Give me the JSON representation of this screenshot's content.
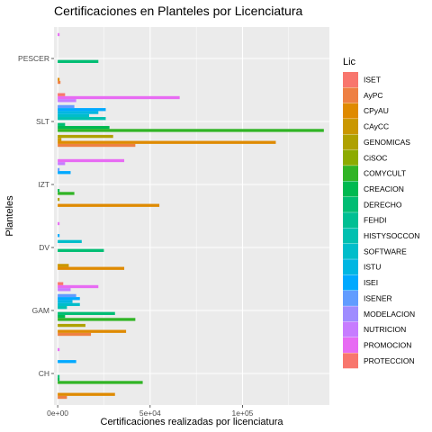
{
  "chart_data": {
    "type": "bar",
    "orientation": "horizontal",
    "title": "Certificaciones en Planteles por Licenciatura",
    "xlabel": "Certificaciones realizadas por licenciatura",
    "ylabel": "Planteles",
    "xlim": [
      -2000,
      147000
    ],
    "x_ticks": [
      {
        "value": 0,
        "label": "0e+00"
      },
      {
        "value": 50000,
        "label": "5e+04"
      },
      {
        "value": 100000,
        "label": "1e+05"
      }
    ],
    "categories": [
      "CH",
      "GAM",
      "DV",
      "IZT",
      "SLT",
      "PESCER"
    ],
    "legend": {
      "title": "Lic",
      "placement": "right"
    },
    "series": [
      {
        "name": "ISET",
        "color": "#F8766D",
        "values": [
          0,
          0,
          0,
          0,
          0,
          0
        ]
      },
      {
        "name": "AyPC",
        "color": "#EE8043",
        "values": [
          5000,
          18000,
          0,
          0,
          42000,
          1500
        ]
      },
      {
        "name": "CPyAU",
        "color": "#DF8A00",
        "values": [
          31000,
          37000,
          36000,
          55000,
          118000,
          1000
        ]
      },
      {
        "name": "CAyCC",
        "color": "#CA9700",
        "values": [
          0,
          0,
          6000,
          0,
          2000,
          0
        ]
      },
      {
        "name": "GENOMICAS",
        "color": "#AFA100",
        "values": [
          0,
          15000,
          0,
          1000,
          30000,
          0
        ]
      },
      {
        "name": "CiSOC",
        "color": "#8CAB00",
        "values": [
          0,
          0,
          0,
          0,
          0,
          0
        ]
      },
      {
        "name": "COMYCULT",
        "color": "#31B425",
        "values": [
          46000,
          42000,
          0,
          9000,
          144000,
          0
        ]
      },
      {
        "name": "CREACION",
        "color": "#00B950",
        "values": [
          1000,
          4000,
          0,
          1000,
          28000,
          0
        ]
      },
      {
        "name": "DERECHO",
        "color": "#00BD73",
        "values": [
          1000,
          31000,
          25000,
          0,
          4000,
          22000
        ]
      },
      {
        "name": "FEHDI",
        "color": "#00BF93",
        "values": [
          0,
          0,
          0,
          0,
          0,
          0
        ]
      },
      {
        "name": "HISTYSOCCON",
        "color": "#00C0B0",
        "values": [
          0,
          5000,
          0,
          0,
          26000,
          0
        ]
      },
      {
        "name": "SOFTWARE",
        "color": "#00BDCA",
        "values": [
          0,
          12000,
          13000,
          0,
          17000,
          0
        ]
      },
      {
        "name": "ISTU",
        "color": "#00B6E2",
        "values": [
          0,
          8000,
          0,
          0,
          22000,
          0
        ]
      },
      {
        "name": "ISEI",
        "color": "#00A9FF",
        "values": [
          10000,
          12000,
          1000,
          7000,
          26000,
          0
        ]
      },
      {
        "name": "ISENER",
        "color": "#619CFF",
        "values": [
          0,
          10000,
          0,
          1000,
          9000,
          0
        ]
      },
      {
        "name": "MODELACION",
        "color": "#9F8CFF",
        "values": [
          0,
          0,
          0,
          0,
          0,
          0
        ]
      },
      {
        "name": "NUTRICION",
        "color": "#C77CFF",
        "values": [
          0,
          7000,
          0,
          4000,
          10000,
          0
        ]
      },
      {
        "name": "PROMOCION",
        "color": "#E76BF3",
        "values": [
          1000,
          22000,
          1000,
          36000,
          66000,
          1000
        ]
      },
      {
        "name": "PROTECCION",
        "color": "#F8766D",
        "values": [
          0,
          3000,
          0,
          0,
          4000,
          0
        ]
      }
    ]
  }
}
